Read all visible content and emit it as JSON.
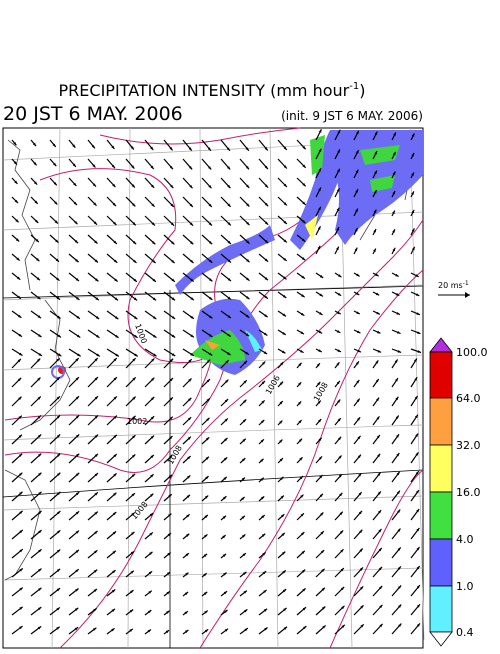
{
  "header": {
    "title": {
      "text": "PRECIPITATION INTENSITY (mm hour",
      "superscript": "-1",
      "suffix": ")"
    },
    "valid_time": "20 JST 6 MAY. 2006",
    "init_time": "(init. 9 JST 6 MAY. 2006)"
  },
  "wind_scale": {
    "text": "20 ms",
    "superscript": "-1"
  },
  "colorbar": {
    "labels": [
      "100.0",
      "64.0",
      "32.0",
      "16.0",
      "4.0",
      "1.0",
      "0.4"
    ]
  },
  "contour_labels": [
    "1000",
    "1002",
    "1008",
    "1006",
    "1008",
    "1008"
  ]
}
